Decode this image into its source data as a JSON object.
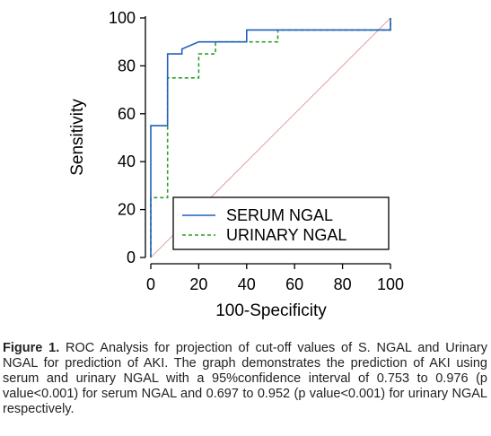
{
  "chart_data": {
    "type": "line",
    "xlabel": "100-Specificity",
    "ylabel": "Sensitivity",
    "xlim": [
      0,
      100
    ],
    "ylim": [
      0,
      100
    ],
    "x_ticks": [
      0,
      20,
      40,
      60,
      80,
      100
    ],
    "y_ticks": [
      0,
      20,
      40,
      60,
      80,
      100
    ],
    "grid": false,
    "legend_position": "bottom-right",
    "series": [
      {
        "name": "SERUM NGAL",
        "color": "#1f5fbf",
        "line_style": "solid",
        "x": [
          0,
          0,
          7,
          7,
          13,
          13,
          20,
          20,
          40,
          40,
          100,
          100
        ],
        "y": [
          0,
          55,
          55,
          85,
          85,
          87,
          90,
          90,
          90,
          95,
          95,
          100
        ]
      },
      {
        "name": "URINARY NGAL",
        "color": "#2aa02a",
        "line_style": "dashed",
        "x": [
          0,
          0,
          7,
          7,
          20,
          20,
          27,
          27,
          53,
          53,
          100,
          100
        ],
        "y": [
          0,
          25,
          25,
          75,
          75,
          85,
          85,
          90,
          90,
          95,
          95,
          100
        ]
      },
      {
        "name": "",
        "color": "#e8a0a0",
        "line_style": "solid",
        "x": [
          0,
          100
        ],
        "y": [
          0,
          100
        ]
      }
    ]
  },
  "caption": {
    "label": "Figure 1.",
    "text": " ROC Analysis for projection of cut-off values of S. NGAL and Urinary NGAL for prediction of AKI. The graph demonstrates the prediction of AKI using serum and urinary NGAL with a 95%confidence interval of 0.753 to 0.976 (p value<0.001) for serum NGAL and 0.697 to 0.952 (p value<0.001) for urinary NGAL respectively."
  }
}
